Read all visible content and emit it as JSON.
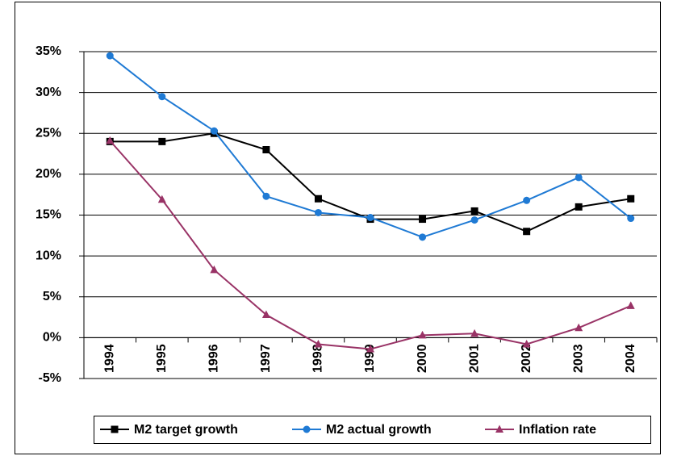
{
  "chart_data": {
    "type": "line",
    "categories": [
      "1994",
      "1995",
      "1996",
      "1997",
      "1998",
      "1999",
      "2000",
      "2001",
      "2002",
      "2003",
      "2004"
    ],
    "series": [
      {
        "name": "M2 target growth",
        "color": "#000000",
        "marker": "square",
        "values": [
          24,
          24,
          25,
          23,
          17,
          14.5,
          14.5,
          15.5,
          13,
          16,
          17
        ]
      },
      {
        "name": "M2 actual growth",
        "color": "#1f7ad4",
        "marker": "circle",
        "values": [
          34.5,
          29.5,
          25.3,
          17.3,
          15.3,
          14.7,
          12.3,
          14.4,
          16.8,
          19.6,
          14.6
        ]
      },
      {
        "name": "Inflation rate",
        "color": "#993366",
        "marker": "triangle",
        "values": [
          24.1,
          16.9,
          8.3,
          2.8,
          -0.8,
          -1.4,
          0.3,
          0.5,
          -0.8,
          1.2,
          3.9
        ]
      }
    ],
    "ylim": [
      -5,
      35
    ],
    "yticks": [
      {
        "value": -5,
        "label": "-5%"
      },
      {
        "value": 0,
        "label": "0%"
      },
      {
        "value": 5,
        "label": "5%"
      },
      {
        "value": 10,
        "label": "10%"
      },
      {
        "value": 15,
        "label": "15%"
      },
      {
        "value": 20,
        "label": "20%"
      },
      {
        "value": 25,
        "label": "25%"
      },
      {
        "value": 30,
        "label": "30%"
      },
      {
        "value": 35,
        "label": "35%"
      }
    ],
    "grid": true,
    "legend": "bottom"
  }
}
